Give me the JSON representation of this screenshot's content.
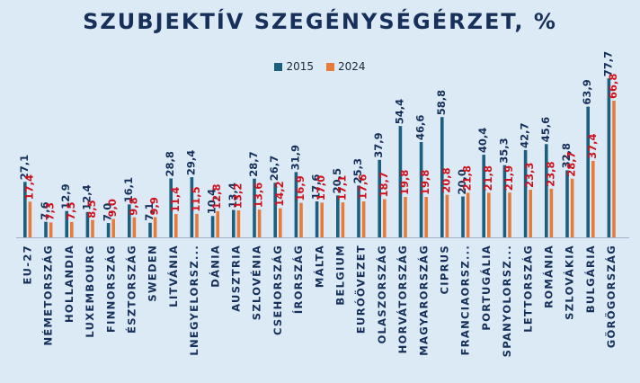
{
  "chart_data": {
    "type": "bar",
    "title": "SZUBJEKTÍV SZEGÉNYSÉGÉRZET, %",
    "xlabel": "",
    "ylabel": "",
    "ylim": [
      0,
      80
    ],
    "grid": false,
    "legend_position": "top-center",
    "categories": [
      "EU-27",
      "NÉMETORSZÁG",
      "HOLLANDIA",
      "LUXEMBOURG",
      "FINNORSZÁG",
      "ÉSZTORSZÁG",
      "SWEDEN",
      "LITVÁNIA",
      "LNEGYELORSZ...",
      "DÁNIA",
      "AUSZTRIA",
      "SZLOVÉNIA",
      "CSEHORSZÁG",
      "ÍRORSZÁG",
      "MÁLTA",
      "BELGIUM",
      "EURÓÖVEZET",
      "OLASZORSZÁG",
      "HORVÁTORSZÁG",
      "MAGYARORSZÁG",
      "CIPRUS",
      "FRANCIAORSZ...",
      "PORTUGÁLIA",
      "SPANYOLORSZ...",
      "LETTORSZÁG",
      "ROMÁNIA",
      "SZLOVÁKIA",
      "BULGÁRIA",
      "GÖRÖGORSZÁG"
    ],
    "series": [
      {
        "name": "2015",
        "color": "#1b5f7e",
        "label_color": "#16305a",
        "values": [
          27.1,
          7.6,
          12.9,
          12.4,
          7.0,
          16.1,
          7.1,
          28.8,
          29.4,
          10.4,
          13.4,
          28.7,
          26.7,
          31.9,
          17.6,
          20.5,
          25.3,
          37.9,
          54.4,
          46.6,
          58.8,
          20.0,
          40.4,
          35.3,
          42.7,
          45.6,
          32.8,
          63.9,
          77.7
        ],
        "labels": [
          "27,1",
          "7,6",
          "12,9",
          "12,4",
          "7,0",
          "16,1",
          "7,1",
          "28,8",
          "29,4",
          "10,4",
          "13,4",
          "28,7",
          "26,7",
          "31,9",
          "17,6",
          "20,5",
          "25,3",
          "37,9",
          "54,4",
          "46,6",
          "58,8",
          "20,0",
          "40,4",
          "35,3",
          "42,7",
          "45,6",
          "32,8",
          "63,9",
          "77,7"
        ]
      },
      {
        "name": "2024",
        "color": "#e87a3a",
        "label_color": "#d0101a",
        "values": [
          17.4,
          7.3,
          7.5,
          8.5,
          9.0,
          9.8,
          9.9,
          11.4,
          11.5,
          12.8,
          13.2,
          13.6,
          14.2,
          16.9,
          17.0,
          17.1,
          17.6,
          18.7,
          19.8,
          19.8,
          20.8,
          21.8,
          21.8,
          21.9,
          23.3,
          23.8,
          28.7,
          37.4,
          66.8
        ],
        "labels": [
          "17,4",
          "7,3",
          "7,5",
          "8,5",
          "9,0",
          "9,8",
          "9,9",
          "11,4",
          "11,5",
          "12,8",
          "13,2",
          "13,6",
          "14,2",
          "16,9",
          "17,0",
          "17,1",
          "17,6",
          "18,7",
          "19,8",
          "19,8",
          "20,8",
          "21,8",
          "21,8",
          "21,9",
          "23,3",
          "23,8",
          "28,7",
          "37,4",
          "66,8"
        ]
      }
    ]
  }
}
